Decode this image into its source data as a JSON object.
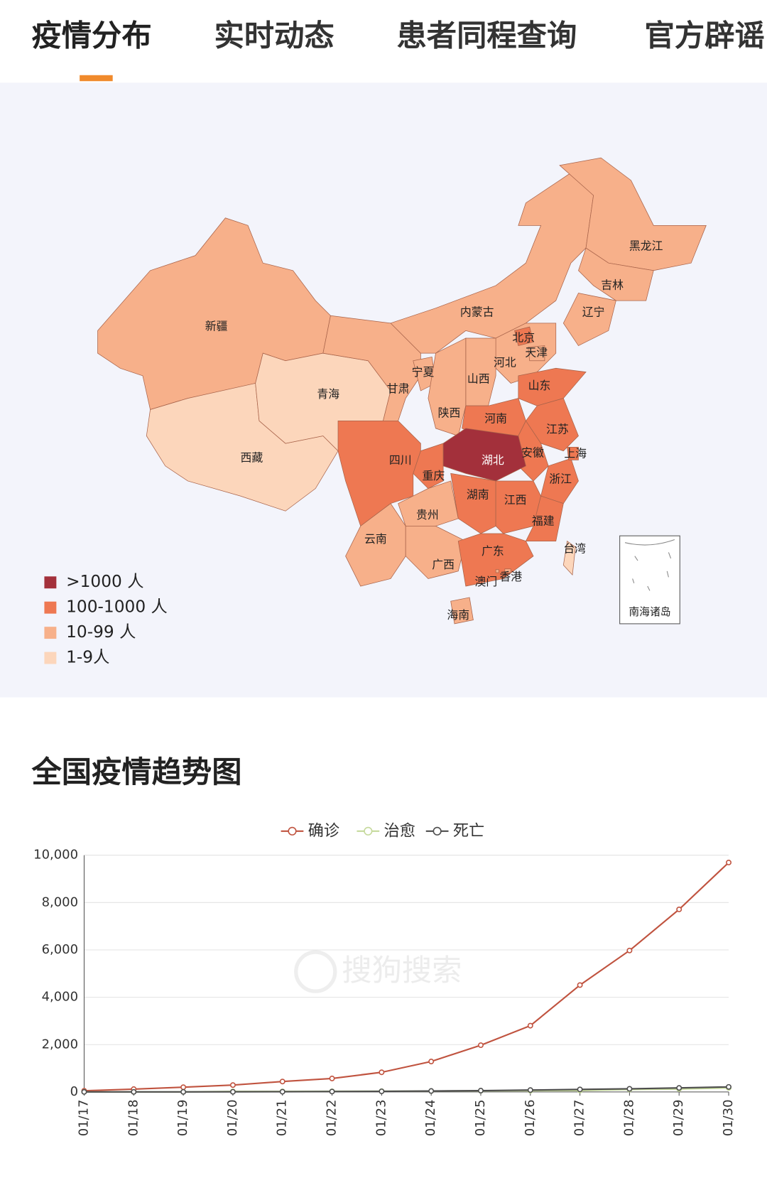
{
  "tabs": [
    "疫情分布",
    "实时动态",
    "患者同程查询",
    "官方辟谣"
  ],
  "map": {
    "legend": [
      {
        "label": ">1000 人",
        "color": "#a3303b"
      },
      {
        "label": "100-1000 人",
        "color": "#ee7852"
      },
      {
        "label": "10-99 人",
        "color": "#f7b08a"
      },
      {
        "label": "1-9人",
        "color": "#fcd6bb"
      }
    ],
    "provinces": [
      {
        "name": "新疆",
        "color": "#f7b08a"
      },
      {
        "name": "西藏",
        "color": "#fcd6bb"
      },
      {
        "name": "青海",
        "color": "#fcd6bb"
      },
      {
        "name": "甘肃",
        "color": "#f7b08a"
      },
      {
        "name": "内蒙古",
        "color": "#f7b08a"
      },
      {
        "name": "黑龙江",
        "color": "#f7b08a"
      },
      {
        "name": "吉林",
        "color": "#f7b08a"
      },
      {
        "name": "辽宁",
        "color": "#f7b08a"
      },
      {
        "name": "河北",
        "color": "#f7b08a"
      },
      {
        "name": "北京",
        "color": "#ee7852"
      },
      {
        "name": "天津",
        "color": "#f7b08a"
      },
      {
        "name": "山西",
        "color": "#f7b08a"
      },
      {
        "name": "山东",
        "color": "#ee7852"
      },
      {
        "name": "宁夏",
        "color": "#f7b08a"
      },
      {
        "name": "陕西",
        "color": "#f7b08a"
      },
      {
        "name": "河南",
        "color": "#ee7852"
      },
      {
        "name": "江苏",
        "color": "#ee7852"
      },
      {
        "name": "安徽",
        "color": "#ee7852"
      },
      {
        "name": "浙江",
        "color": "#ee7852"
      },
      {
        "name": "上海",
        "color": "#ee7852"
      },
      {
        "name": "四川",
        "color": "#ee7852"
      },
      {
        "name": "重庆",
        "color": "#ee7852"
      },
      {
        "name": "湖北",
        "color": "#a3303b"
      },
      {
        "name": "湖南",
        "color": "#ee7852"
      },
      {
        "name": "江西",
        "color": "#ee7852"
      },
      {
        "name": "福建",
        "color": "#ee7852"
      },
      {
        "name": "贵州",
        "color": "#f7b08a"
      },
      {
        "name": "云南",
        "color": "#f7b08a"
      },
      {
        "name": "广西",
        "color": "#f7b08a"
      },
      {
        "name": "广东",
        "color": "#ee7852"
      },
      {
        "name": "海南",
        "color": "#f7b08a"
      },
      {
        "name": "台湾",
        "color": "#fcd6bb"
      },
      {
        "name": "香港",
        "color": "#f7b08a"
      },
      {
        "name": "澳门",
        "color": "#f7b08a"
      }
    ],
    "inset_label": "南海诸岛"
  },
  "section_title": "全国疫情趋势图",
  "watermark": "搜狗搜索",
  "chart_data": {
    "type": "line",
    "categories": [
      "01/17",
      "01/18",
      "01/19",
      "01/20",
      "01/21",
      "01/22",
      "01/23",
      "01/24",
      "01/25",
      "01/26",
      "01/27",
      "01/28",
      "01/29",
      "01/30"
    ],
    "series": [
      {
        "name": "确诊",
        "color": "#c0533f",
        "values": [
          50,
          120,
          200,
          290,
          440,
          570,
          830,
          1287,
          1975,
          2800,
          4515,
          5974,
          7711,
          9692
        ]
      },
      {
        "name": "治愈",
        "color": "#c5d99b",
        "values": [
          4,
          4,
          4,
          25,
          25,
          28,
          34,
          38,
          49,
          51,
          60,
          103,
          124,
          171
        ]
      },
      {
        "name": "死亡",
        "color": "#4d4d4d",
        "values": [
          2,
          3,
          3,
          6,
          9,
          17,
          25,
          41,
          56,
          80,
          106,
          132,
          170,
          213
        ]
      }
    ],
    "ylim": [
      0,
      10000
    ],
    "yticks": [
      0,
      {
        "value": 2000,
        "label": "2,000"
      },
      {
        "value": 4000,
        "label": "4,000"
      },
      {
        "value": 6000,
        "label": "6,000"
      },
      {
        "value": 8000,
        "label": "8,000"
      },
      {
        "value": 10000,
        "label": "10,000"
      }
    ],
    "grid": true
  }
}
